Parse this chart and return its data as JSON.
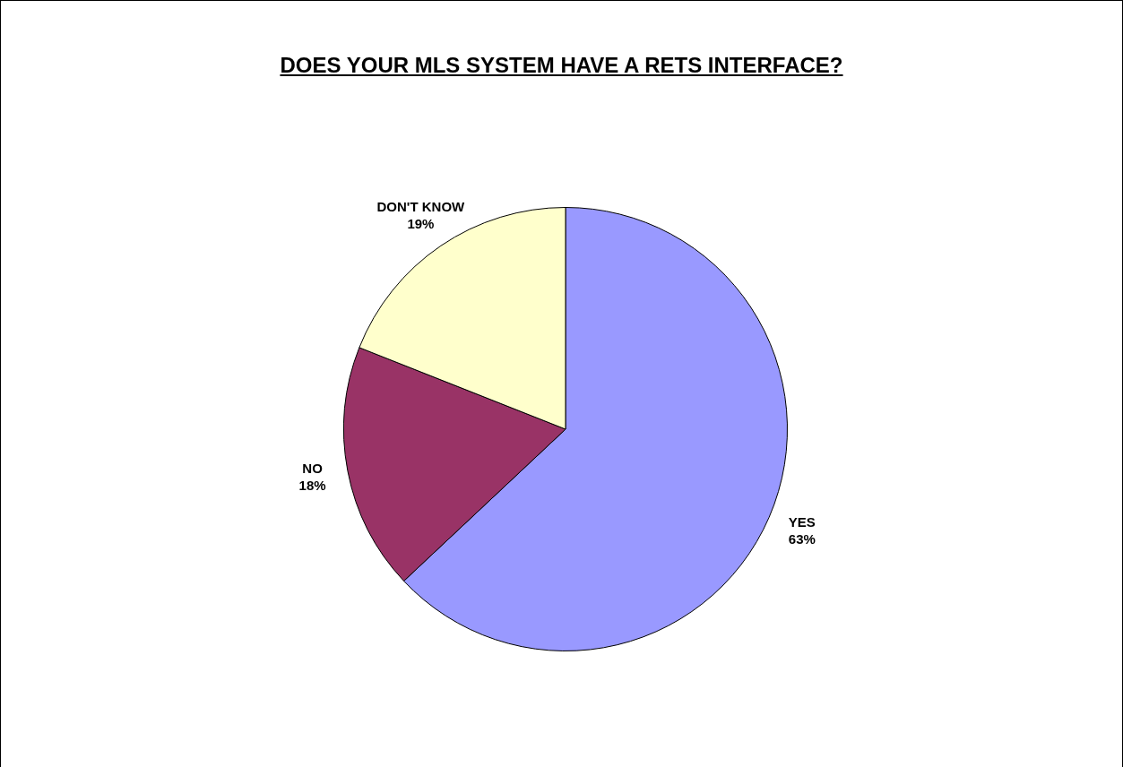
{
  "chart_data": {
    "type": "pie",
    "title": "DOES YOUR MLS SYSTEM HAVE A RETS INTERFACE?",
    "categories": [
      "YES",
      "NO",
      "DON'T KNOW"
    ],
    "values": [
      63,
      18,
      19
    ],
    "value_labels": [
      "63%",
      "18%",
      "19%"
    ],
    "colors": [
      "#9999ff",
      "#993366",
      "#ffffcc"
    ],
    "legend": false
  }
}
